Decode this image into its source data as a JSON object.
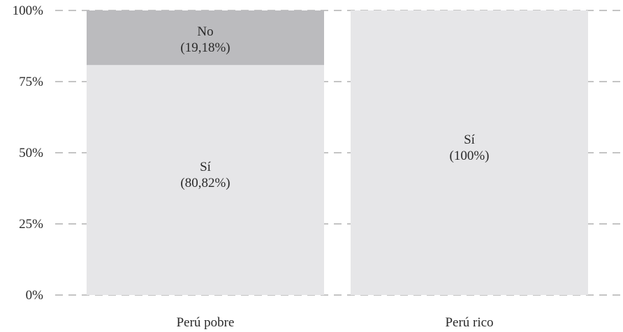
{
  "chart_data": {
    "type": "bar",
    "stacked": true,
    "categories": [
      "Perú pobre",
      "Perú rico"
    ],
    "series": [
      {
        "name": "Sí",
        "values": [
          80.82,
          100
        ],
        "color": "#e6e6e8",
        "labels": [
          "(80,82%)",
          "(100%)"
        ]
      },
      {
        "name": "No",
        "values": [
          19.18,
          0
        ],
        "color": "#bbbbbe",
        "labels": [
          "(19,18%)",
          ""
        ]
      }
    ],
    "ylim": [
      0,
      100
    ],
    "yticks": [
      {
        "value": 0,
        "label": "0%"
      },
      {
        "value": 25,
        "label": "25%"
      },
      {
        "value": 50,
        "label": "50%"
      },
      {
        "value": 75,
        "label": "75%"
      },
      {
        "value": 100,
        "label": "100%"
      }
    ],
    "grid": true,
    "legend": "none",
    "title": "",
    "xlabel": "",
    "ylabel": ""
  }
}
